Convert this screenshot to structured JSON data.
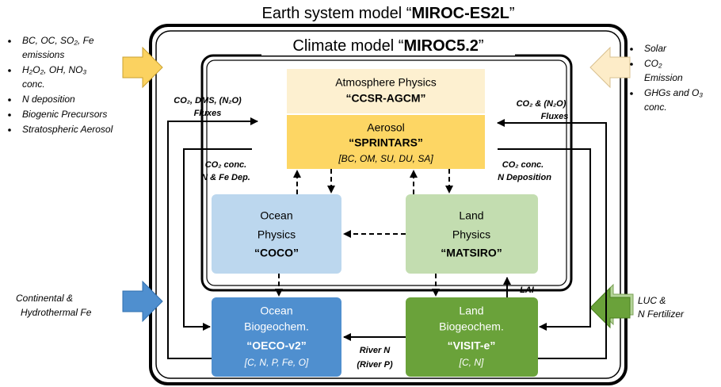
{
  "title": {
    "prefix": "Earth system model “",
    "name": "MIROC-ES2L",
    "suffix": "”"
  },
  "subtitle": {
    "prefix": "Climate model “",
    "name": "MIROC5.2",
    "suffix": "”"
  },
  "boxes": [
    {
      "lines": [
        "Atmosphere Physics",
        "“CCSR-AGCM”"
      ]
    },
    {
      "lines": [
        "Aerosol",
        "“SPRINTARS”",
        "[BC, OM, SU, DU, SA]"
      ]
    },
    {
      "lines": [
        "Ocean",
        "Physics",
        "“COCO”"
      ]
    },
    {
      "lines": [
        "Land",
        "Physics",
        "“MATSIRO”"
      ]
    },
    {
      "lines": [
        "Ocean",
        "Biogeochem.",
        "“OECO-v2”",
        "[C, N, P, Fe, O]"
      ]
    },
    {
      "lines": [
        "Land",
        "Biogeochem.",
        "“VISIT-e”",
        "[C, N]"
      ]
    }
  ],
  "flux_labels": [
    "CO₂, DMS, (N₂O)",
    "Fluxes",
    "CO₂ conc.",
    "N & Fe Dep.",
    "CO₂ & (N₂O)",
    "Fluxes",
    "CO₂ conc.",
    "N Deposition",
    "LAI",
    "River N",
    "(River P)"
  ],
  "left_inputs": [
    [
      "BC, OC, SO₂, Fe",
      "emissions"
    ],
    [
      "H₂O₂, OH, NO₃",
      "conc."
    ],
    [
      "N deposition"
    ],
    [
      "Biogenic Precursors"
    ],
    [
      "Stratospheric Aerosol"
    ]
  ],
  "right_inputs": [
    [
      "Solar"
    ],
    [
      "CO₂",
      "Emission"
    ],
    [
      "GHGs and O₃",
      "conc."
    ]
  ],
  "bottom_left_inputs": [
    "Continental &",
    "Hydrothermal Fe"
  ],
  "bottom_right_inputs": [
    "LUC &",
    "N Fertilizer"
  ]
}
